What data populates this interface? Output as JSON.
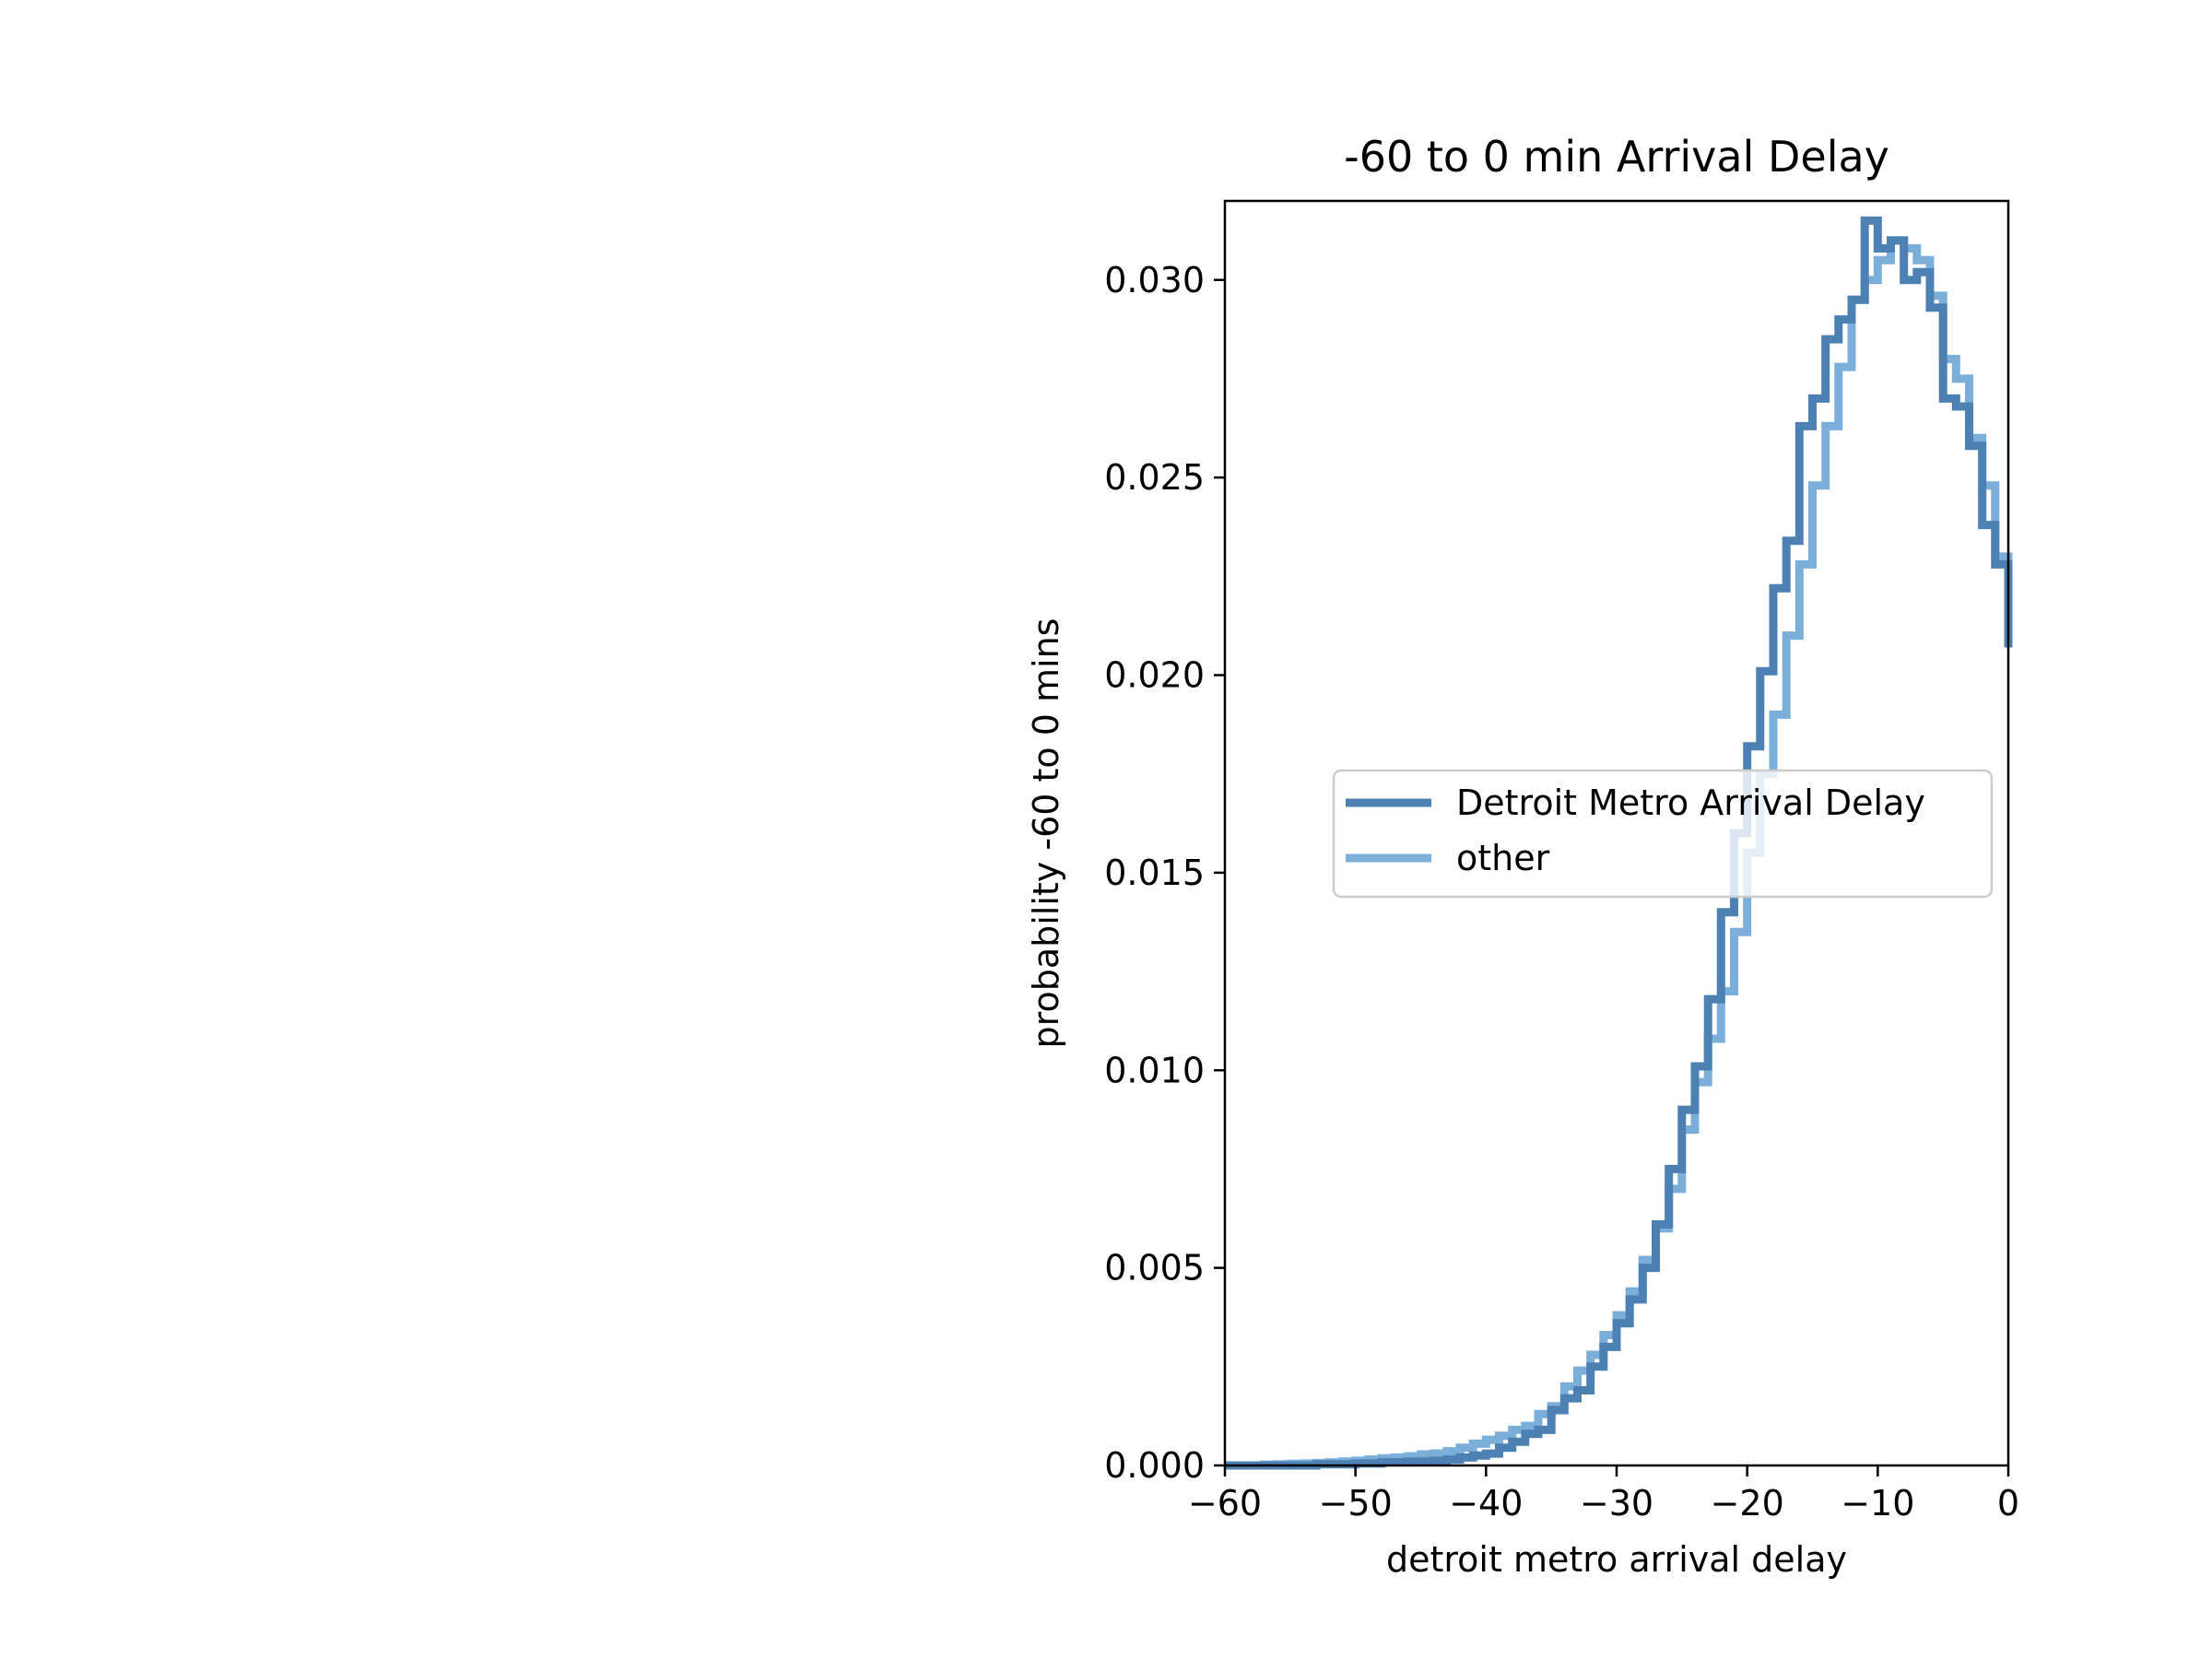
{
  "chart_data": {
    "type": "line",
    "title": "-60 to 0 min Arrival Delay",
    "xlabel": "detroit metro arrival delay",
    "ylabel": "probability -60 to 0 mins",
    "xlim": [
      -60,
      0
    ],
    "ylim": [
      0,
      0.032
    ],
    "xticks": [
      -60,
      -50,
      -40,
      -30,
      -20,
      -10,
      0
    ],
    "xtick_labels": [
      "−60",
      "−50",
      "−40",
      "−30",
      "−20",
      "−10",
      "0"
    ],
    "yticks": [
      0,
      0.005,
      0.01,
      0.015,
      0.02,
      0.025,
      0.03
    ],
    "ytick_labels": [
      "0.000",
      "0.005",
      "0.010",
      "0.015",
      "0.020",
      "0.025",
      "0.030"
    ],
    "grid": false,
    "legend_position": "center-right",
    "step_style": "histogram-step",
    "series": [
      {
        "name": "Detroit Metro Arrival Delay",
        "color": "#4d80b3",
        "bin_edges": [
          -60,
          -59,
          -58,
          -57,
          -56,
          -55,
          -54,
          -53,
          -52,
          -51,
          -50,
          -49,
          -48,
          -47,
          -46,
          -45,
          -44,
          -43,
          -42,
          -41,
          -40,
          -39,
          -38,
          -37,
          -36,
          -35,
          -34,
          -33,
          -32,
          -31,
          -30,
          -29,
          -28,
          -27,
          -26,
          -25,
          -24,
          -23,
          -22,
          -21,
          -20,
          -19,
          -18,
          -17,
          -16,
          -15,
          -14,
          -13,
          -12,
          -11,
          -10,
          -9,
          -8,
          -7,
          -6,
          -5,
          -4,
          -3,
          -2,
          -1,
          0
        ],
        "values": [
          0,
          0,
          0,
          0,
          0,
          0,
          0,
          3e-05,
          3e-05,
          3e-05,
          5e-05,
          5e-05,
          8e-05,
          8e-05,
          0.0001,
          0.0001,
          0.00012,
          0.00015,
          0.0002,
          0.00025,
          0.0003,
          0.00045,
          0.0006,
          0.0008,
          0.0009,
          0.0014,
          0.0017,
          0.0019,
          0.0025,
          0.003,
          0.0036,
          0.0042,
          0.005,
          0.0061,
          0.0075,
          0.009,
          0.0101,
          0.0118,
          0.014,
          0.016,
          0.0182,
          0.0201,
          0.0222,
          0.0234,
          0.0263,
          0.027,
          0.0285,
          0.029,
          0.0295,
          0.0315,
          0.0308,
          0.031,
          0.03,
          0.0302,
          0.0293,
          0.027,
          0.0268,
          0.0258,
          0.0238,
          0.0228,
          0.0207
        ]
      },
      {
        "name": "other",
        "color": "#7bafd9",
        "bin_edges": [
          -60,
          -59,
          -58,
          -57,
          -56,
          -55,
          -54,
          -53,
          -52,
          -51,
          -50,
          -49,
          -48,
          -47,
          -46,
          -45,
          -44,
          -43,
          -42,
          -41,
          -40,
          -39,
          -38,
          -37,
          -36,
          -35,
          -34,
          -33,
          -32,
          -31,
          -30,
          -29,
          -28,
          -27,
          -26,
          -25,
          -24,
          -23,
          -22,
          -21,
          -20,
          -19,
          -18,
          -17,
          -16,
          -15,
          -14,
          -13,
          -12,
          -11,
          -10,
          -9,
          -8,
          -7,
          -6,
          -5,
          -4,
          -3,
          -2,
          -1,
          0
        ],
        "values": [
          0,
          0,
          0,
          2e-05,
          3e-05,
          4e-05,
          5e-05,
          6e-05,
          8e-05,
          0.0001,
          0.00012,
          0.00015,
          0.00018,
          0.0002,
          0.00023,
          0.00028,
          0.0003,
          0.00036,
          0.00045,
          0.00055,
          0.00065,
          0.00075,
          0.0009,
          0.001,
          0.0013,
          0.0015,
          0.002,
          0.0024,
          0.0028,
          0.0033,
          0.0038,
          0.0044,
          0.0052,
          0.006,
          0.007,
          0.0085,
          0.0097,
          0.0108,
          0.012,
          0.0135,
          0.0155,
          0.0175,
          0.019,
          0.021,
          0.0228,
          0.0248,
          0.0263,
          0.0278,
          0.0295,
          0.03,
          0.0305,
          0.031,
          0.0308,
          0.0305,
          0.0296,
          0.028,
          0.0275,
          0.026,
          0.0248,
          0.023,
          0.0226
        ]
      }
    ]
  }
}
